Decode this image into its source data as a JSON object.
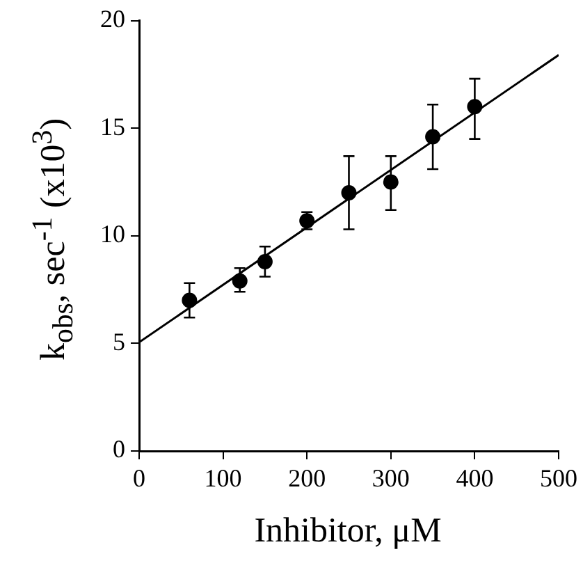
{
  "chart_data": {
    "type": "scatter",
    "xlabel": "Inhibitor, μM",
    "ylabel": "k$_{obs}$, sec$^{-1}$ (x10$^{3}$)",
    "xlim": [
      0,
      500
    ],
    "xticks": [
      0,
      100,
      200,
      300,
      400,
      500
    ],
    "ylim": [
      0,
      20
    ],
    "yticks": [
      0,
      5,
      10,
      15,
      20
    ],
    "grid": false,
    "legend": false,
    "series": [
      {
        "color": "#000000",
        "marker": "circle",
        "x": [
          60,
          120,
          150,
          200,
          250,
          300,
          350,
          400
        ],
        "values": [
          7.0,
          7.9,
          8.8,
          10.7,
          12.0,
          12.5,
          14.6,
          16.0
        ],
        "errors": [
          [
            6.2,
            7.8
          ],
          [
            7.4,
            8.5
          ],
          [
            8.1,
            9.5
          ],
          [
            10.3,
            11.1
          ],
          [
            10.3,
            13.7
          ],
          [
            11.2,
            13.7
          ],
          [
            13.1,
            16.1
          ],
          [
            14.5,
            17.3
          ]
        ]
      },
      {
        "type": "line",
        "color": "#000000",
        "line_style": "solid",
        "marker": "none",
        "x": [
          0,
          500
        ],
        "values": [
          5.05,
          18.4
        ]
      }
    ]
  }
}
